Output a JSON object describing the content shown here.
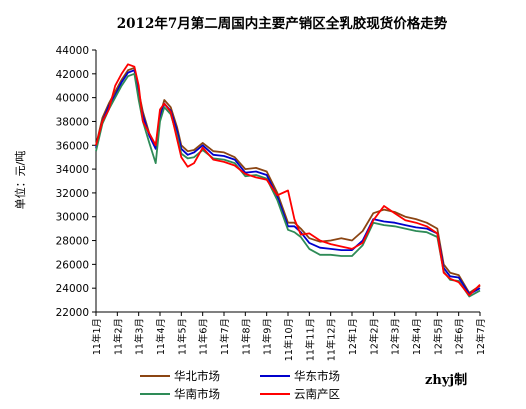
{
  "chart_data": {
    "type": "line",
    "title": "2012年7月第二周国内主要产销区全乳胶现货价格走势",
    "ylabel": "单位：元/吨",
    "xlabel": "",
    "ylim": [
      22000,
      44000
    ],
    "yticks": [
      22000,
      24000,
      26000,
      28000,
      30000,
      32000,
      34000,
      36000,
      38000,
      40000,
      42000,
      44000
    ],
    "categories": [
      "11年1月",
      "11年2月",
      "11年3月",
      "11年4月",
      "11年5月",
      "11年6月",
      "11年7月",
      "11年8月",
      "11年9月",
      "11年10月",
      "11年11月",
      "11年12月",
      "12年1月",
      "12年2月",
      "12年3月",
      "12年4月",
      "12年5月",
      "12年6月",
      "12年7月"
    ],
    "grid": false,
    "legend_position": "bottom",
    "signature": "zhyj制",
    "colors": {
      "华北市场": "#8B4513",
      "华东市场": "#0000CC",
      "华南市场": "#2E8B57",
      "云南产区": "#FF0000"
    },
    "series": [
      {
        "name": "华北市场",
        "color": "#8B4513",
        "x": [
          0,
          0.3,
          0.6,
          0.9,
          1.2,
          1.5,
          1.8,
          2.0,
          2.2,
          2.5,
          2.8,
          3.0,
          3.2,
          3.5,
          3.8,
          4.0,
          4.3,
          4.6,
          5.0,
          5.5,
          6.0,
          6.5,
          7.0,
          7.5,
          8.0,
          8.5,
          9.0,
          9.3,
          9.6,
          10.0,
          10.5,
          11.0,
          11.5,
          12.0,
          12.5,
          13.0,
          13.5,
          14.0,
          14.5,
          15.0,
          15.5,
          16.0,
          16.3,
          16.6,
          17.0,
          17.5,
          18.0
        ],
        "values": [
          36000,
          38300,
          39500,
          40500,
          41500,
          42300,
          42500,
          40500,
          38800,
          37000,
          36000,
          38500,
          39800,
          39200,
          37500,
          36000,
          35500,
          35600,
          36200,
          35500,
          35400,
          35000,
          34000,
          34100,
          33800,
          32000,
          29500,
          29500,
          29000,
          28200,
          27900,
          28000,
          28200,
          28000,
          28800,
          30300,
          30600,
          30400,
          30000,
          29800,
          29500,
          29000,
          26000,
          25300,
          25100,
          23600,
          24200
        ]
      },
      {
        "name": "华东市场",
        "color": "#0000CC",
        "x": [
          0,
          0.3,
          0.6,
          0.9,
          1.2,
          1.5,
          1.8,
          2.0,
          2.2,
          2.5,
          2.8,
          3.0,
          3.2,
          3.5,
          3.8,
          4.0,
          4.3,
          4.6,
          5.0,
          5.5,
          6.0,
          6.5,
          7.0,
          7.5,
          8.0,
          8.5,
          9.0,
          9.3,
          9.6,
          10.0,
          10.5,
          11.0,
          11.5,
          12.0,
          12.5,
          13.0,
          13.5,
          14.0,
          14.5,
          15.0,
          15.5,
          16.0,
          16.3,
          16.6,
          17.0,
          17.5,
          18.0
        ],
        "values": [
          35800,
          38000,
          39300,
          40200,
          41300,
          42100,
          42300,
          40200,
          38500,
          36800,
          35700,
          38300,
          39500,
          38900,
          37200,
          35700,
          35200,
          35400,
          36000,
          35200,
          35100,
          34800,
          33700,
          33800,
          33500,
          31700,
          29200,
          29200,
          28700,
          27800,
          27400,
          27300,
          27200,
          27200,
          28000,
          29800,
          29600,
          29500,
          29300,
          29100,
          29000,
          28600,
          25700,
          25000,
          24900,
          23500,
          24000
        ]
      },
      {
        "name": "华南市场",
        "color": "#2E8B57",
        "x": [
          0,
          0.3,
          0.6,
          0.9,
          1.2,
          1.5,
          1.8,
          2.0,
          2.2,
          2.5,
          2.8,
          3.0,
          3.2,
          3.5,
          3.8,
          4.0,
          4.3,
          4.6,
          5.0,
          5.5,
          6.0,
          6.5,
          7.0,
          7.5,
          8.0,
          8.5,
          9.0,
          9.3,
          9.6,
          10.0,
          10.5,
          11.0,
          11.5,
          12.0,
          12.5,
          13.0,
          13.5,
          14.0,
          14.5,
          15.0,
          15.5,
          16.0,
          16.3,
          16.6,
          17.0,
          17.5,
          18.0
        ],
        "values": [
          35500,
          37800,
          39000,
          40000,
          41000,
          41800,
          42000,
          39800,
          38000,
          36200,
          34500,
          38000,
          39200,
          38600,
          36800,
          35300,
          34900,
          35000,
          35600,
          34900,
          34800,
          34500,
          33400,
          33500,
          33200,
          31400,
          28900,
          28700,
          28300,
          27300,
          26800,
          26800,
          26700,
          26700,
          27600,
          29500,
          29300,
          29200,
          29000,
          28800,
          28700,
          28300,
          25400,
          24700,
          24600,
          23300,
          23800
        ]
      },
      {
        "name": "云南产区",
        "color": "#FF0000",
        "x": [
          0,
          0.3,
          0.6,
          0.9,
          1.2,
          1.5,
          1.8,
          2.0,
          2.2,
          2.5,
          2.8,
          3.0,
          3.2,
          3.5,
          3.8,
          4.0,
          4.3,
          4.6,
          5.0,
          5.5,
          6.0,
          6.5,
          7.0,
          7.5,
          8.0,
          8.5,
          9.0,
          9.3,
          9.6,
          10.0,
          10.5,
          11.0,
          11.5,
          12.0,
          12.5,
          13.0,
          13.5,
          14.0,
          14.5,
          15.0,
          15.5,
          16.0,
          16.3,
          16.6,
          17.0,
          17.5,
          18.0
        ],
        "values": [
          36000,
          38000,
          39000,
          41000,
          42000,
          42800,
          42600,
          41000,
          38000,
          37000,
          36000,
          39000,
          39500,
          38800,
          36500,
          35000,
          34200,
          34500,
          35800,
          34800,
          34600,
          34300,
          33600,
          33300,
          33100,
          31800,
          32200,
          29800,
          28500,
          28600,
          28000,
          27700,
          27500,
          27300,
          27800,
          29700,
          30900,
          30300,
          29700,
          29500,
          29200,
          28600,
          25300,
          24800,
          24500,
          23400,
          24300
        ]
      }
    ]
  }
}
